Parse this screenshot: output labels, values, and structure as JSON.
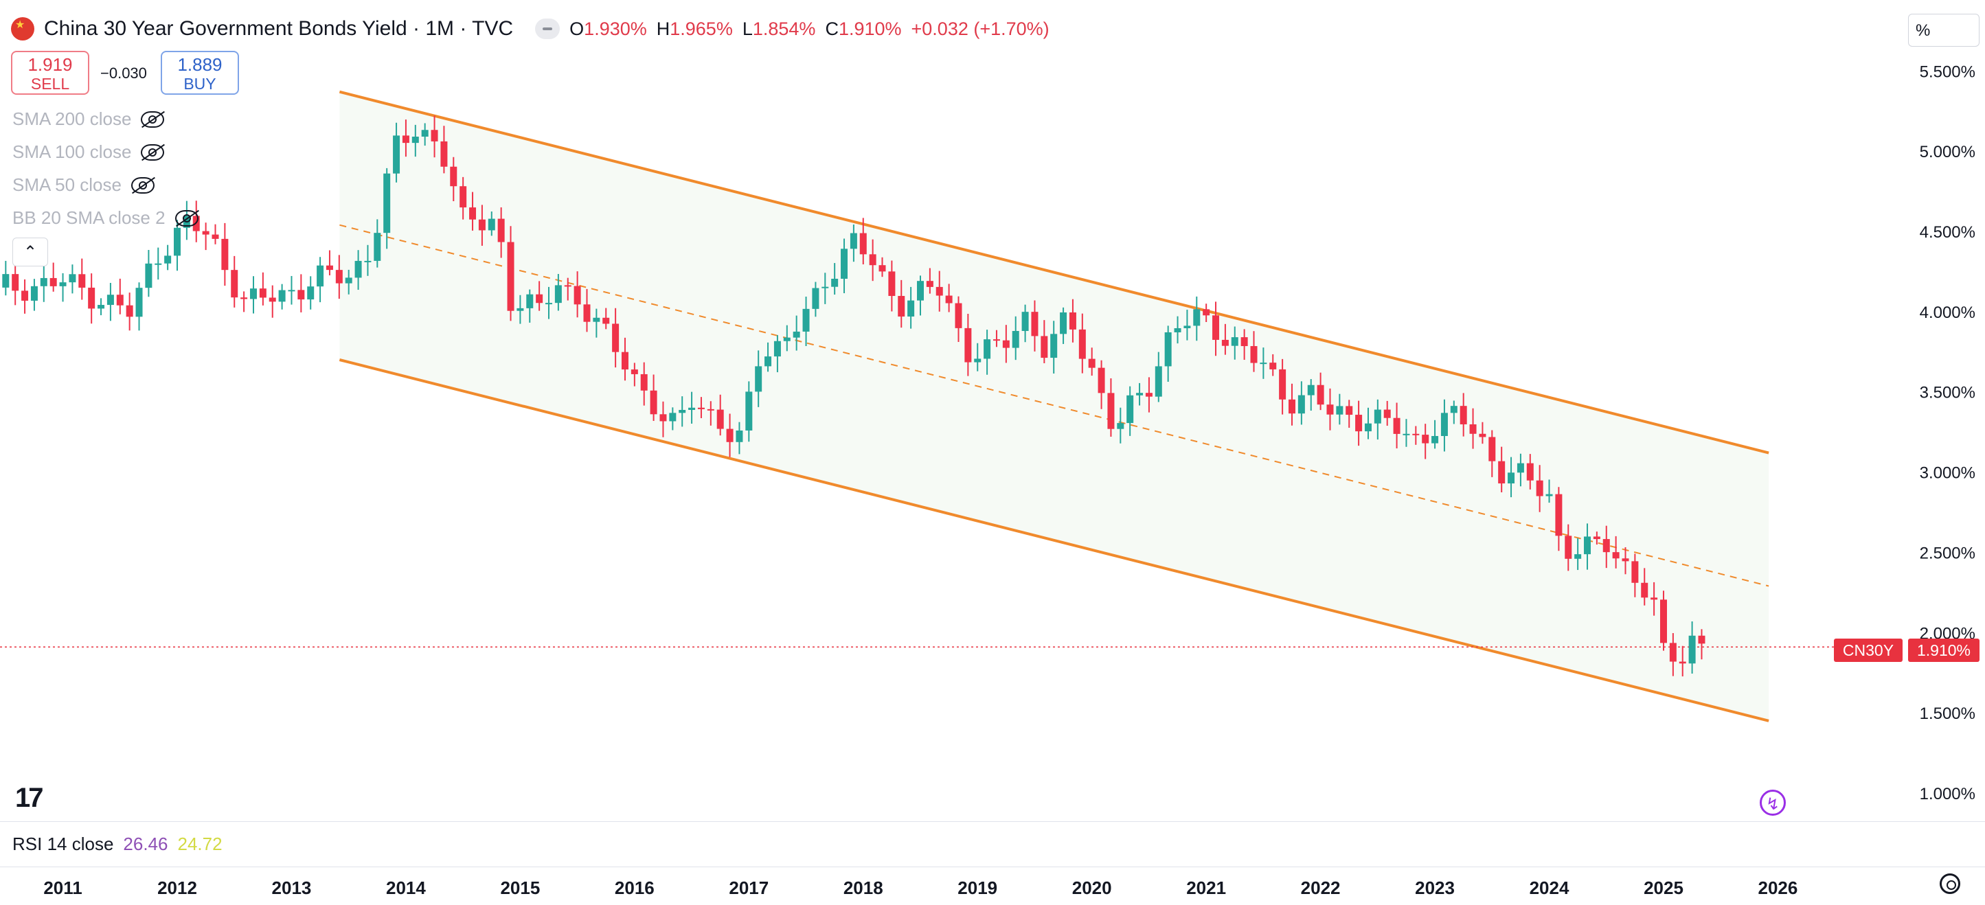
{
  "header": {
    "title": "China 30 Year Government Bonds Yield · 1M · TVC",
    "flag_icon": "china-flag-icon",
    "open_label": "O",
    "open": "1.930%",
    "high_label": "H",
    "high": "1.965%",
    "low_label": "L",
    "low": "1.854%",
    "close_label": "C",
    "close": "1.910%",
    "change": "+0.032 (+1.70%)"
  },
  "trade": {
    "sell_price": "1.919",
    "sell_label": "SELL",
    "spread": "−0.030",
    "buy_price": "1.889",
    "buy_label": "BUY"
  },
  "indicators": [
    {
      "label": "SMA 200 close"
    },
    {
      "label": "SMA 100 close"
    },
    {
      "label": "SMA 50 close"
    },
    {
      "label": "BB 20 SMA close 2"
    }
  ],
  "price_scale": {
    "unit_button": "%",
    "ticks": [
      "5.500%",
      "5.000%",
      "4.500%",
      "4.000%",
      "3.500%",
      "3.000%",
      "2.500%",
      "2.000%",
      "1.500%",
      "1.000%"
    ]
  },
  "last_price": {
    "symbol": "CN30Y",
    "value": "1.910%"
  },
  "rsi": {
    "label": "RSI 14 close",
    "value1": "26.46",
    "value2": "24.72"
  },
  "colors": {
    "up": "#26a69a",
    "down": "#ef3349",
    "channel": "#f08a2c",
    "channel_fill": "#f6faf5",
    "rsi1": "#8e4fb5",
    "rsi2": "#d3da43"
  },
  "chart_data": {
    "type": "candlestick",
    "title": "China 30 Year Government Bonds Yield · 1M · TVC",
    "ylabel": "%",
    "ylim": [
      0.85,
      5.6
    ],
    "xlim": [
      2010.45,
      2026.55
    ],
    "x_ticks": [
      "2011",
      "2012",
      "2013",
      "2014",
      "2015",
      "2016",
      "2017",
      "2018",
      "2019",
      "2020",
      "2021",
      "2022",
      "2023",
      "2024",
      "2025",
      "2026"
    ],
    "channel": {
      "upper": {
        "start": [
          2013.42,
          5.37
        ],
        "end": [
          2025.92,
          3.12
        ]
      },
      "lower": {
        "start": [
          2013.42,
          3.7
        ],
        "end": [
          2025.92,
          1.45
        ]
      },
      "mid": {
        "start": [
          2013.42,
          4.54
        ],
        "end": [
          2025.92,
          2.29
        ]
      }
    },
    "close_anchors": [
      [
        2010.5,
        4.15
      ],
      [
        2011.0,
        4.18
      ],
      [
        2011.3,
        4.1
      ],
      [
        2011.6,
        3.98
      ],
      [
        2011.8,
        4.35
      ],
      [
        2012.1,
        4.55
      ],
      [
        2012.3,
        4.45
      ],
      [
        2012.6,
        4.05
      ],
      [
        2012.9,
        4.1
      ],
      [
        2013.2,
        4.2
      ],
      [
        2013.5,
        4.22
      ],
      [
        2013.7,
        4.4
      ],
      [
        2013.9,
        5.0
      ],
      [
        2014.1,
        5.15
      ],
      [
        2014.3,
        5.05
      ],
      [
        2014.5,
        4.55
      ],
      [
        2014.8,
        4.6
      ],
      [
        2014.9,
        4.05
      ],
      [
        2015.2,
        4.0
      ],
      [
        2015.3,
        4.25
      ],
      [
        2015.6,
        3.95
      ],
      [
        2015.9,
        3.75
      ],
      [
        2016.1,
        3.45
      ],
      [
        2016.3,
        3.25
      ],
      [
        2016.5,
        3.5
      ],
      [
        2016.7,
        3.3
      ],
      [
        2016.9,
        3.15
      ],
      [
        2017.1,
        3.8
      ],
      [
        2017.3,
        3.75
      ],
      [
        2017.5,
        4.0
      ],
      [
        2017.7,
        4.25
      ],
      [
        2017.9,
        4.42
      ],
      [
        2018.1,
        4.3
      ],
      [
        2018.3,
        4.05
      ],
      [
        2018.5,
        4.1
      ],
      [
        2018.7,
        4.15
      ],
      [
        2018.9,
        3.75
      ],
      [
        2019.2,
        3.75
      ],
      [
        2019.4,
        4.0
      ],
      [
        2019.6,
        3.75
      ],
      [
        2019.8,
        3.95
      ],
      [
        2020.0,
        3.65
      ],
      [
        2020.2,
        3.25
      ],
      [
        2020.5,
        3.55
      ],
      [
        2020.7,
        3.9
      ],
      [
        2020.9,
        3.95
      ],
      [
        2021.2,
        3.85
      ],
      [
        2021.5,
        3.65
      ],
      [
        2021.7,
        3.45
      ],
      [
        2021.9,
        3.5
      ],
      [
        2022.1,
        3.35
      ],
      [
        2022.4,
        3.35
      ],
      [
        2022.6,
        3.3
      ],
      [
        2022.8,
        3.18
      ],
      [
        2023.0,
        3.3
      ],
      [
        2023.2,
        3.35
      ],
      [
        2023.4,
        3.2
      ],
      [
        2023.6,
        3.0
      ],
      [
        2023.8,
        2.95
      ],
      [
        2024.0,
        2.85
      ],
      [
        2024.1,
        2.55
      ],
      [
        2024.3,
        2.5
      ],
      [
        2024.5,
        2.55
      ],
      [
        2024.7,
        2.4
      ],
      [
        2024.9,
        2.2
      ],
      [
        2025.0,
        1.85
      ],
      [
        2025.15,
        1.85
      ],
      [
        2025.25,
        1.97
      ],
      [
        2025.38,
        1.91
      ]
    ]
  }
}
